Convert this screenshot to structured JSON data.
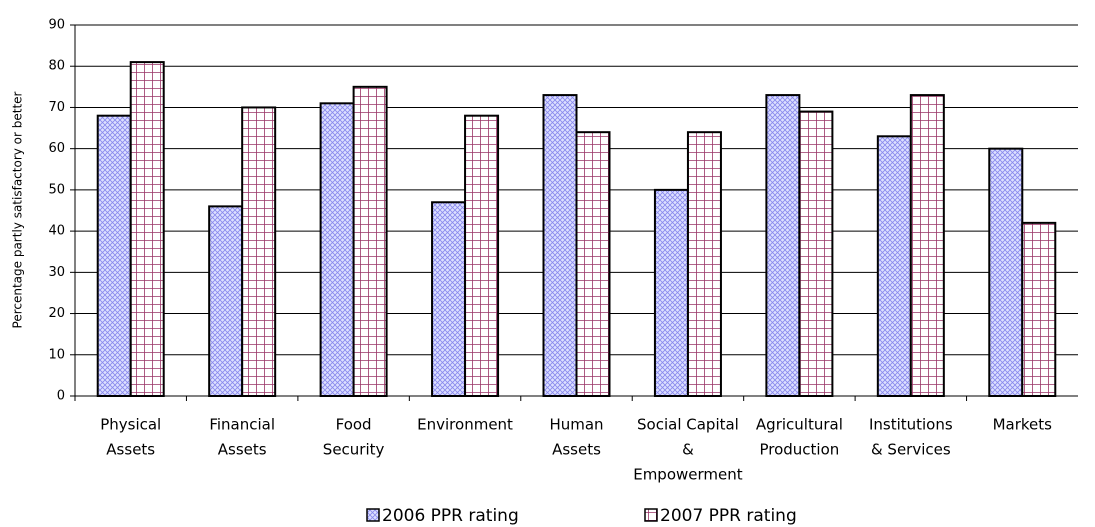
{
  "chart_data": {
    "type": "bar",
    "y_label": "Percentage partly satisfactory or better",
    "categories": [
      [
        "Physical",
        "Assets"
      ],
      [
        "Financial",
        "Assets"
      ],
      [
        "Food",
        "Security"
      ],
      [
        "Environment"
      ],
      [
        "Human",
        "Assets"
      ],
      [
        "Social Capital",
        "&",
        "Empowerment"
      ],
      [
        "Agricultural",
        "Production"
      ],
      [
        "Institutions",
        "& Services"
      ],
      [
        "Markets"
      ]
    ],
    "series": [
      {
        "name": "2006 PPR rating",
        "color": "#9999ff",
        "values": [
          68,
          46,
          71,
          47,
          73,
          50,
          73,
          63,
          60
        ]
      },
      {
        "name": "2007 PPR rating",
        "color": "#993366",
        "values": [
          81,
          70,
          75,
          68,
          64,
          64,
          69,
          73,
          42
        ]
      }
    ],
    "ylim": [
      0,
      90
    ],
    "yticks": [
      0,
      10,
      20,
      30,
      40,
      50,
      60,
      70,
      80,
      90
    ],
    "grid": true,
    "legend": "bottom"
  }
}
